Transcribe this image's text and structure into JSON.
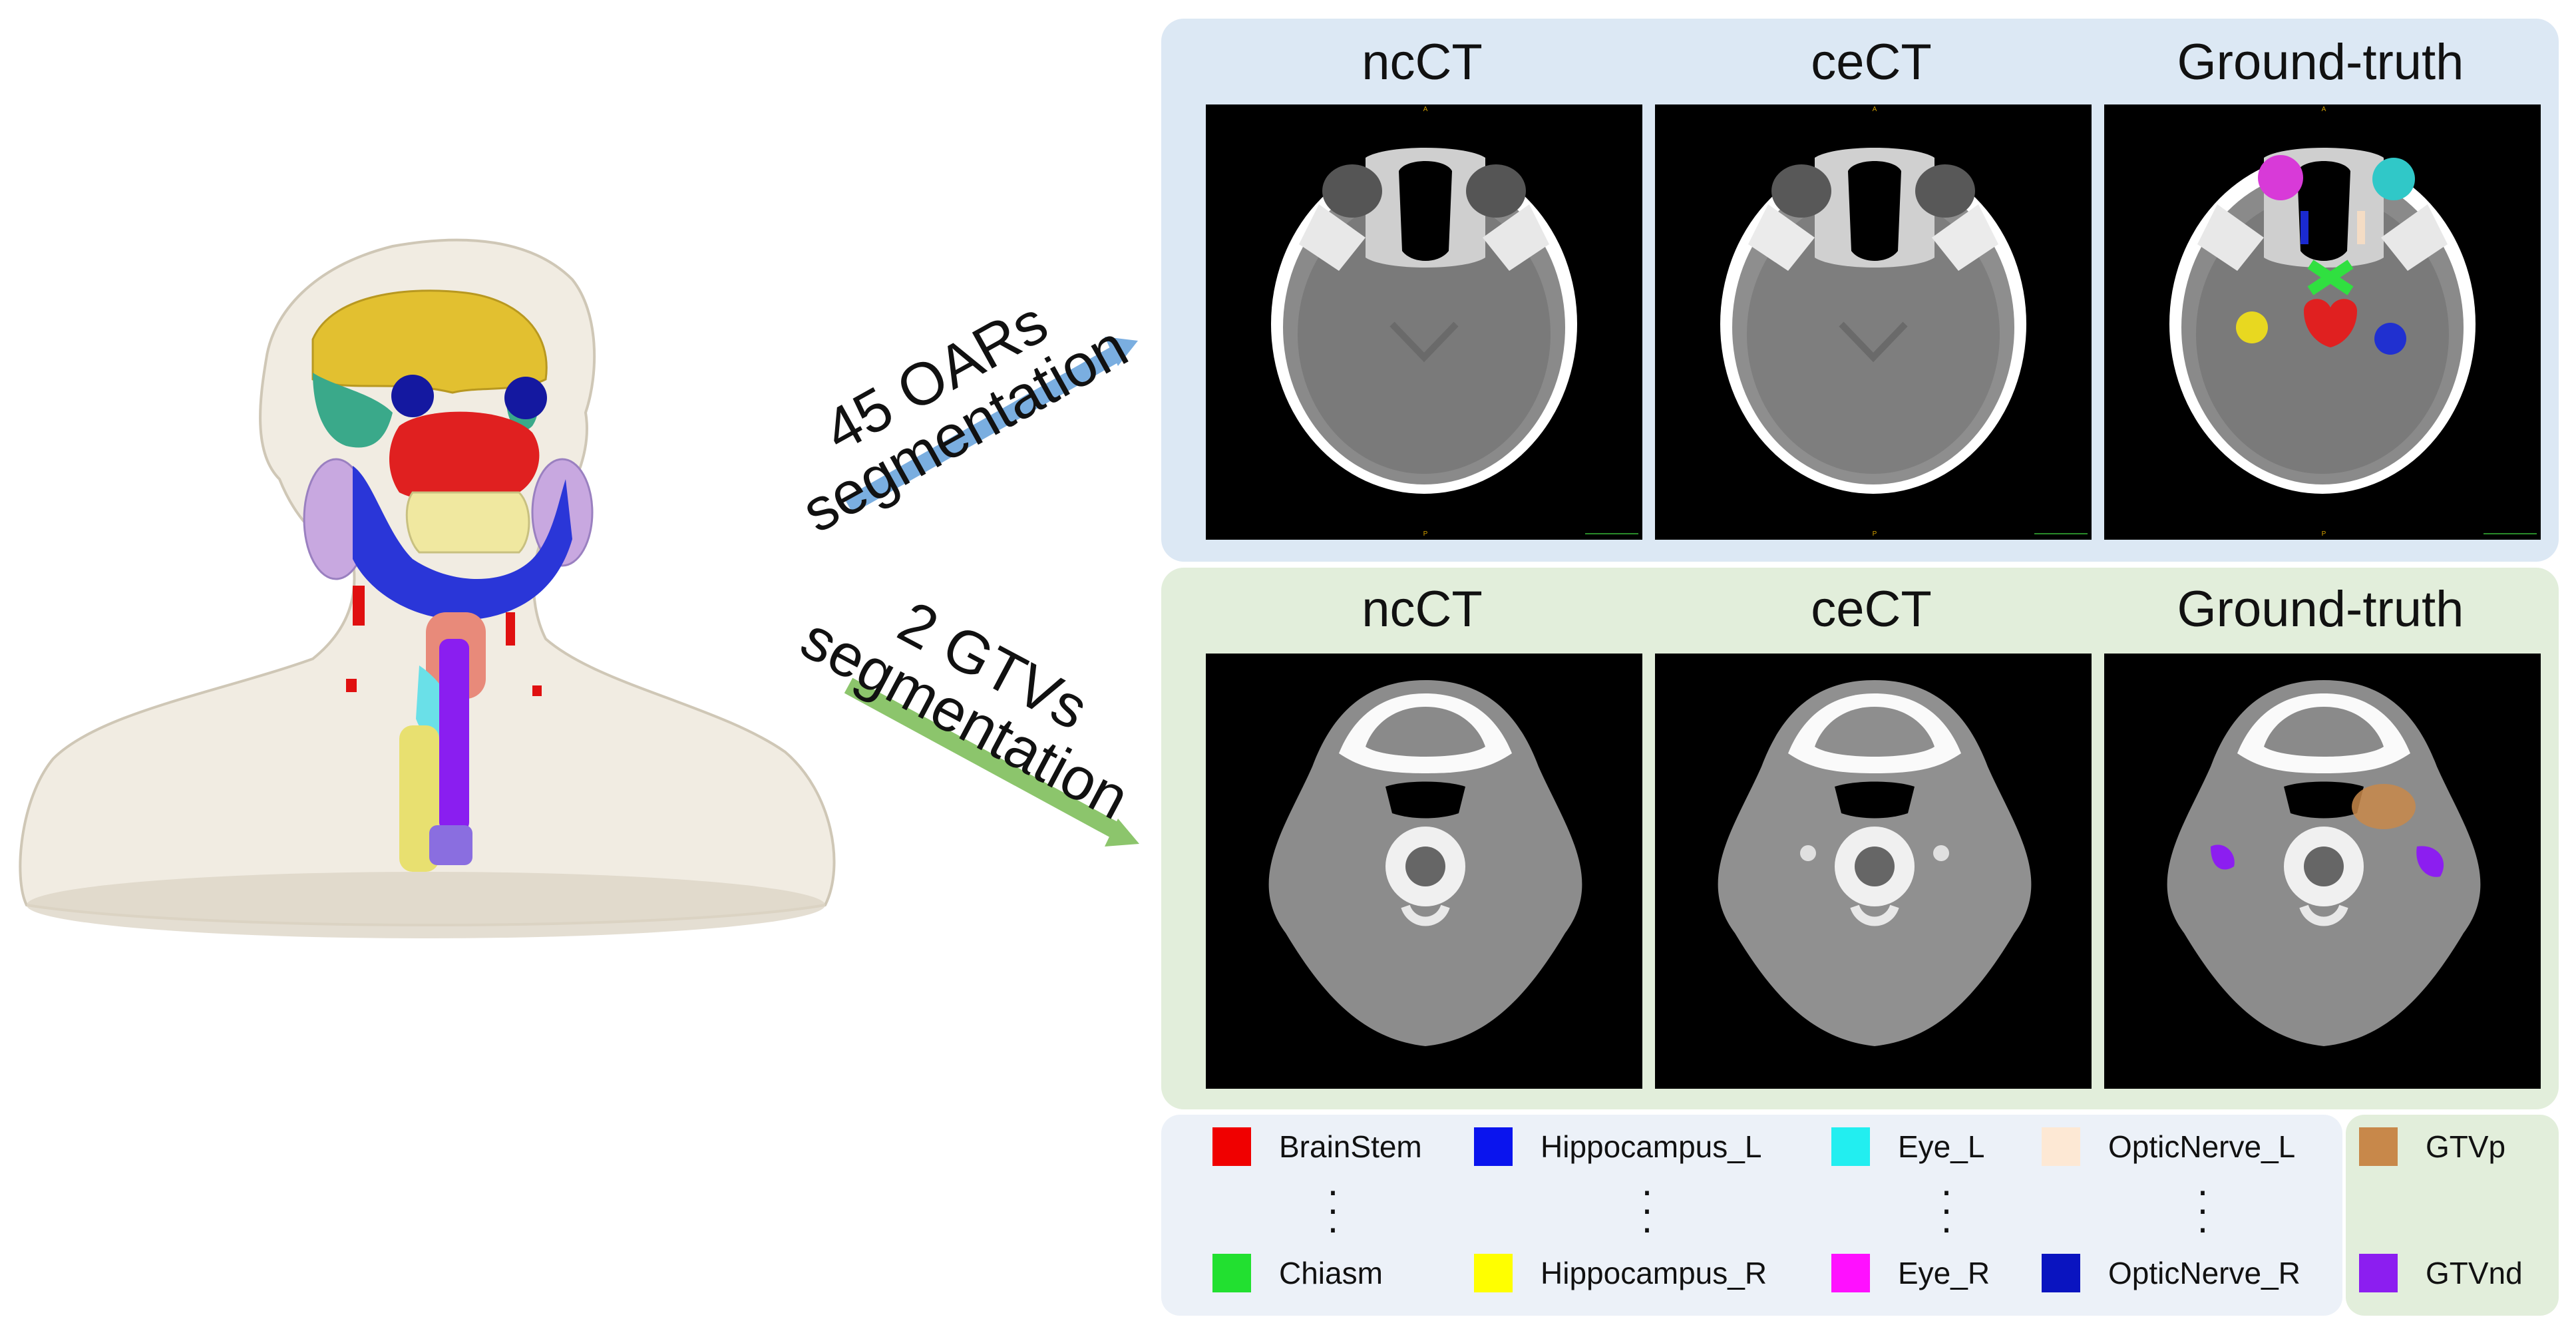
{
  "arrows": {
    "top_label_line1": "45 OARs",
    "top_label_line2": "segmentation",
    "bottom_label_line1": "2 GTVs",
    "bottom_label_line2": "segmentation",
    "top_color": "#7aaee0",
    "bottom_color": "#8cc56c"
  },
  "rows": [
    {
      "titles": [
        "ncCT",
        "ceCT",
        "Ground-truth"
      ]
    },
    {
      "titles": [
        "ncCT",
        "ceCT",
        "Ground-truth"
      ]
    }
  ],
  "legend": {
    "oar_columns": [
      {
        "top": {
          "label": "BrainStem",
          "color": "#f00000"
        },
        "bottom": {
          "label": "Chiasm",
          "color": "#22e030"
        }
      },
      {
        "top": {
          "label": "Hippocampus_L",
          "color": "#0a14ee"
        },
        "bottom": {
          "label": "Hippocampus_R",
          "color": "#ffff00"
        }
      },
      {
        "top": {
          "label": "Eye_L",
          "color": "#22eef0"
        },
        "bottom": {
          "label": "Eye_R",
          "color": "#ff10ff"
        }
      },
      {
        "top": {
          "label": "OpticNerve_L",
          "color": "#fde8d4"
        },
        "bottom": {
          "label": "OpticNerve_R",
          "color": "#0a14c0"
        }
      }
    ],
    "gtv": [
      {
        "label": "GTVp",
        "color": "#c8884a"
      },
      {
        "label": "GTVnd",
        "color": "#8c1ef0"
      }
    ]
  }
}
